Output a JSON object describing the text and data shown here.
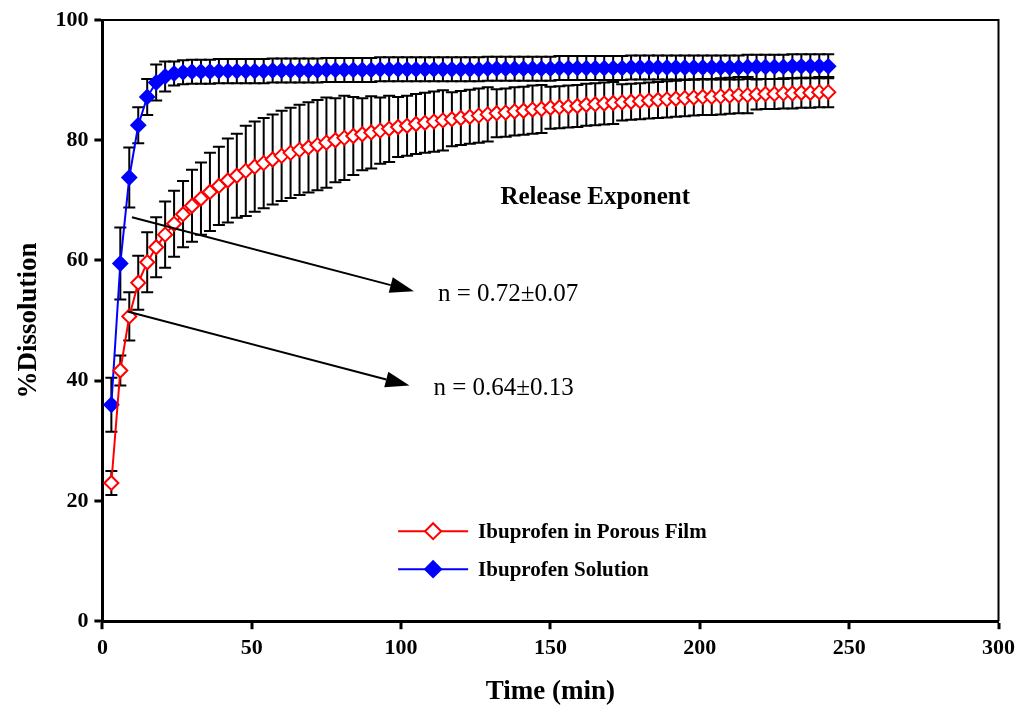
{
  "chart_data": {
    "type": "line",
    "xlabel": "Time (min)",
    "ylabel": "%Dissolution",
    "xlim": [
      0,
      300
    ],
    "xticks": [
      0,
      50,
      100,
      150,
      200,
      250,
      300
    ],
    "ylim": [
      0,
      100
    ],
    "yticks": [
      0,
      20,
      40,
      60,
      80,
      100
    ],
    "marker": "diamond",
    "legend": "bottom",
    "x": [
      3,
      6,
      9,
      12,
      15,
      18,
      21,
      24,
      27,
      30,
      33,
      36,
      39,
      42,
      45,
      48,
      51,
      54,
      57,
      60,
      63,
      66,
      69,
      72,
      75,
      78,
      81,
      84,
      87,
      90,
      93,
      96,
      99,
      102,
      105,
      108,
      111,
      114,
      117,
      120,
      123,
      126,
      129,
      132,
      135,
      138,
      141,
      144,
      147,
      150,
      153,
      156,
      159,
      162,
      165,
      168,
      171,
      174,
      177,
      180,
      183,
      186,
      189,
      192,
      195,
      198,
      201,
      204,
      207,
      210,
      213,
      216,
      219,
      222,
      225,
      228,
      231,
      234,
      237,
      240,
      243
    ],
    "series": [
      {
        "name": "Ibuprofen in Porous Film",
        "color": "#ff0000",
        "values": [
          23,
          41.7,
          50.7,
          56.3,
          59.7,
          62.2,
          64.3,
          66.1,
          67.7,
          69.1,
          70.3,
          71.4,
          72.4,
          73.3,
          74.1,
          74.9,
          75.6,
          76.2,
          76.8,
          77.4,
          77.9,
          78.4,
          78.8,
          79.2,
          79.6,
          80.0,
          80.4,
          80.7,
          81.0,
          81.3,
          81.6,
          81.9,
          82.2,
          82.4,
          82.7,
          82.9,
          83.1,
          83.3,
          83.5,
          83.7,
          83.9,
          84.1,
          84.3,
          84.5,
          84.6,
          84.8,
          84.9,
          85.1,
          85.2,
          85.4,
          85.5,
          85.6,
          85.7,
          85.9,
          86.0,
          86.1,
          86.2,
          86.3,
          86.4,
          86.5,
          86.6,
          86.7,
          86.8,
          86.9,
          87.0,
          87.1,
          87.2,
          87.2,
          87.3,
          87.4,
          87.5,
          87.5,
          87.6,
          87.7,
          87.7,
          87.8,
          87.8,
          87.9,
          87.9,
          88.0,
          88.0
        ],
        "errors": [
          2,
          2.5,
          4,
          4.5,
          5,
          5,
          5.5,
          5.5,
          5.5,
          6,
          6,
          6.5,
          6.5,
          7,
          7,
          7.5,
          7.5,
          7.5,
          7.5,
          7.5,
          7.5,
          7.5,
          7.5,
          7.5,
          7.5,
          7,
          7,
          6.5,
          6,
          6,
          5.5,
          5.5,
          5,
          5,
          5,
          5,
          5,
          5,
          4.5,
          4.5,
          4.5,
          4.5,
          4.5,
          4,
          4,
          4,
          4,
          4,
          4,
          3.5,
          3.5,
          3.5,
          3.5,
          3.5,
          3.5,
          3.5,
          3.5,
          3,
          3,
          3,
          3,
          3,
          3,
          3,
          3,
          3,
          3,
          3,
          3,
          3,
          3,
          3,
          2.5,
          2.5,
          2.5,
          2.5,
          2.5,
          2.5,
          2.5,
          2.5,
          2.5
        ]
      },
      {
        "name": "Ibuprofen Solution",
        "color": "#0000ff",
        "values": [
          36,
          59.5,
          73.8,
          82.5,
          87.2,
          89.6,
          90.6,
          91.1,
          91.3,
          91.4,
          91.4,
          91.4,
          91.5,
          91.5,
          91.5,
          91.5,
          91.5,
          91.5,
          91.6,
          91.6,
          91.6,
          91.6,
          91.6,
          91.6,
          91.7,
          91.7,
          91.7,
          91.7,
          91.7,
          91.7,
          91.8,
          91.8,
          91.8,
          91.8,
          91.8,
          91.8,
          91.8,
          91.8,
          91.8,
          91.8,
          91.8,
          91.8,
          91.9,
          91.9,
          91.9,
          91.9,
          91.9,
          91.9,
          91.9,
          91.9,
          92.0,
          92.0,
          92.0,
          92.0,
          92.0,
          92.0,
          92.0,
          92.0,
          92.1,
          92.1,
          92.1,
          92.1,
          92.1,
          92.1,
          92.1,
          92.1,
          92.1,
          92.1,
          92.1,
          92.1,
          92.1,
          92.2,
          92.2,
          92.2,
          92.2,
          92.2,
          92.3,
          92.3,
          92.3,
          92.3,
          92.3
        ],
        "errors": [
          4.5,
          6,
          5,
          3,
          3,
          3,
          2.5,
          2,
          2,
          2,
          2,
          2,
          2,
          2,
          2,
          2,
          2,
          2,
          2,
          2,
          2,
          2,
          2,
          2,
          2,
          2,
          2,
          2,
          2,
          2,
          2,
          2,
          2,
          2,
          2,
          2,
          2,
          2,
          2,
          2,
          2,
          2,
          2,
          2,
          2,
          2,
          2,
          2,
          2,
          2,
          2,
          2,
          2,
          2,
          2,
          2,
          2,
          2,
          2,
          2,
          2,
          2,
          2,
          2,
          2,
          2,
          2,
          2,
          2,
          2,
          2,
          2,
          2,
          2,
          2,
          2,
          2,
          2,
          2,
          2,
          2
        ]
      }
    ],
    "annotations": [
      "Release Exponent",
      "n = 0.72±0.07",
      "n = 0.64±0.13"
    ]
  }
}
